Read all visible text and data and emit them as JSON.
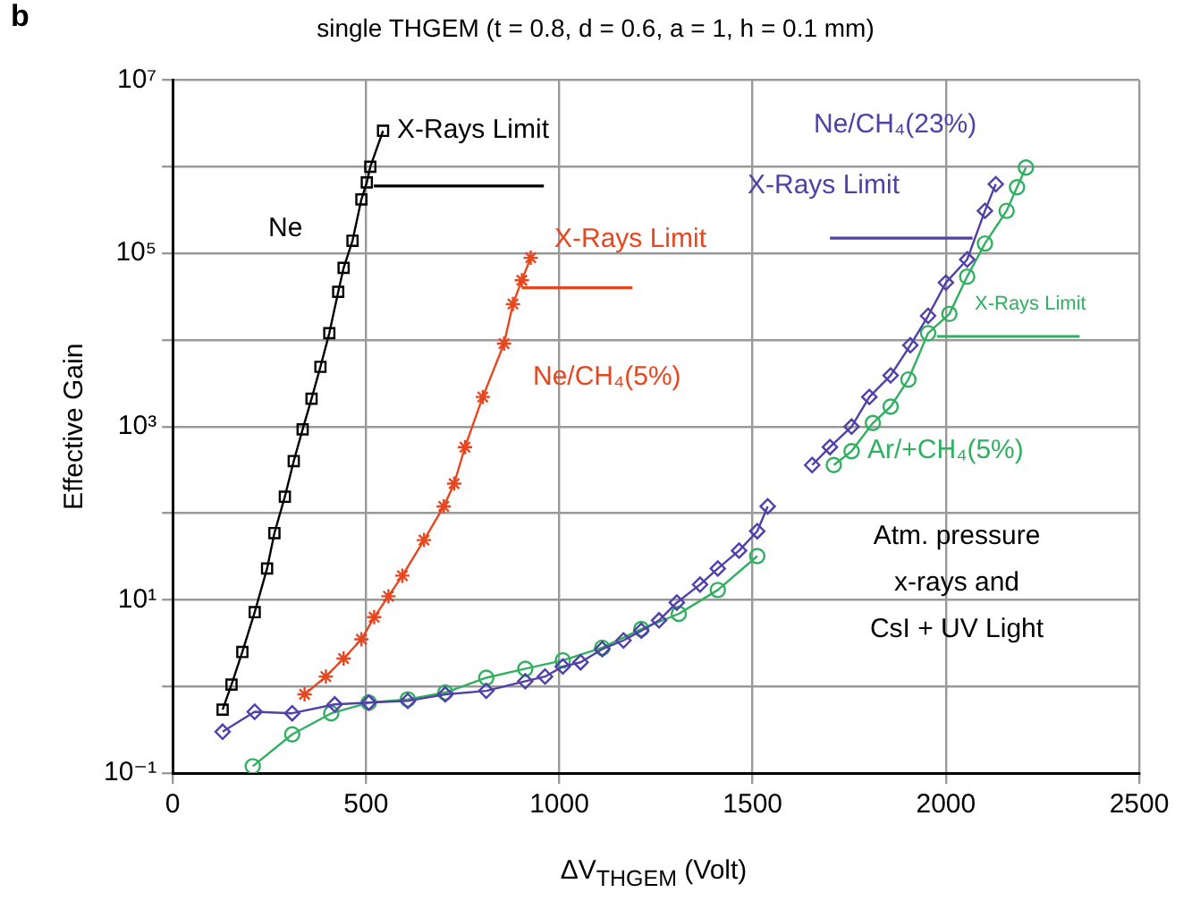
{
  "chart_data": {
    "type": "line",
    "title": "single THGEM (t = 0.8, d = 0.6, a = 1, h = 0.1 mm)",
    "xlabel": "ΔV$_{THGEM}$ (Volt)",
    "ylabel": "Effective Gain",
    "xlim": [
      0,
      2500
    ],
    "xticks": [
      0,
      500,
      1000,
      1500,
      2000,
      2500
    ],
    "ylim": [
      0.1,
      10000000
    ],
    "yticks": [
      {
        "value": 0.1,
        "label": "10⁻¹"
      },
      {
        "value": 1,
        "label": null
      },
      {
        "value": 10,
        "label": "10¹"
      },
      {
        "value": 100,
        "label": null
      },
      {
        "value": 1000,
        "label": "10³"
      },
      {
        "value": 10000,
        "label": null
      },
      {
        "value": 100000,
        "label": "10⁵"
      },
      {
        "value": 1000000,
        "label": null
      },
      {
        "value": 10000000,
        "label": "10⁷"
      }
    ],
    "log": "y",
    "grid": true,
    "legend": false,
    "series": [
      {
        "name": "Ne",
        "color": "#000000",
        "marker": "square",
        "x": [
          129,
          152,
          180,
          212,
          244,
          263,
          290,
          313,
          336,
          359,
          382,
          405,
          428,
          442,
          465,
          488,
          502,
          511,
          544
        ],
        "values": [
          0.54,
          1.05,
          2.5,
          7.2,
          23,
          59,
          155,
          400,
          930,
          2100,
          4900,
          12000,
          36000,
          68000,
          140000,
          420000,
          660000,
          1000000,
          2600000
        ]
      },
      {
        "name": "Ne/CH₄(5%)",
        "color": "#e8461e",
        "marker": "cross",
        "x": [
          341,
          396,
          442,
          488,
          521,
          558,
          594,
          650,
          701,
          728,
          756,
          802,
          857,
          880,
          903,
          926
        ],
        "values": [
          0.81,
          1.3,
          2.1,
          3.5,
          6.3,
          11,
          19,
          49,
          120,
          220,
          580,
          2200,
          9100,
          26000,
          49000,
          89000
        ]
      },
      {
        "name": "Ne/CH₄(23%)",
        "color": "#5040a8",
        "marker": "diamond",
        "x": [
          129,
          212,
          309,
          419,
          507,
          608,
          705,
          811,
          912,
          963,
          1009,
          1055,
          1111,
          1166,
          1212,
          1258,
          1304,
          1364,
          1410,
          1465,
          1512,
          1539,
          1600,
          1654,
          1700,
          1756,
          1802,
          1857,
          1908,
          1954,
          2000,
          2055,
          2101,
          2129
        ],
        "values": [
          0.3,
          0.51,
          0.49,
          0.62,
          0.65,
          0.68,
          0.81,
          0.89,
          1.15,
          1.3,
          1.7,
          1.9,
          2.7,
          3.4,
          4.4,
          5.8,
          9.3,
          15,
          23,
          37,
          62,
          120,
          null,
          360,
          580,
          1000,
          2200,
          3900,
          8700,
          19000,
          46000,
          85000,
          310000,
          630000
        ]
      },
      {
        "name": "Ar/+CH₄(5%)",
        "color": "#30b060",
        "marker": "circle",
        "x": [
          207,
          309,
          410,
          507,
          608,
          705,
          811,
          912,
          1009,
          1111,
          1212,
          1309,
          1410,
          1512,
          1600,
          1710,
          1756,
          1811,
          1857,
          1903,
          1954,
          2009,
          2055,
          2101,
          2157,
          2184,
          2207
        ],
        "values": [
          0.12,
          0.28,
          0.49,
          0.65,
          0.71,
          0.85,
          1.26,
          1.6,
          2,
          2.8,
          4.6,
          6.9,
          13,
          32,
          null,
          360,
          520,
          1100,
          1700,
          3500,
          12000,
          20000,
          54000,
          130000,
          310000,
          580000,
          980000
        ]
      },
      {
        "color": "#000000",
        "marker": "none",
        "x": [
          520,
          960
        ],
        "values": [
          600000,
          600000
        ]
      },
      {
        "color": "#e8461e",
        "marker": "none",
        "x": [
          903,
          1189
        ],
        "values": [
          40000,
          40000
        ]
      },
      {
        "color": "#5040a8",
        "marker": "none",
        "x": [
          1700,
          2069
        ],
        "values": [
          150000,
          150000
        ]
      },
      {
        "color": "#30b060",
        "marker": "none",
        "x": [
          1977,
          2346
        ],
        "values": [
          11000,
          11000
        ]
      }
    ],
    "annotations": [
      "X-Rays Limit",
      "X-Rays Limit",
      "X-Rays Limit",
      "X-Rays Limit",
      "Atm. pressure\nx-rays and\nCsI + UV Light",
      "b"
    ]
  }
}
